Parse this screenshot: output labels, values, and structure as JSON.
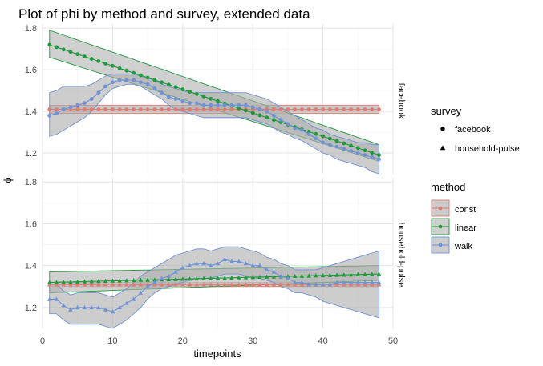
{
  "chart_data": {
    "type": "line",
    "title": "Plot of phi by method and survey, extended data",
    "xlabel": "timepoints",
    "ylabel": "ϕ",
    "xlim": [
      0,
      50
    ],
    "ylim": [
      1.1,
      1.82
    ],
    "x_ticks": [
      0,
      10,
      20,
      30,
      40,
      50
    ],
    "y_ticks": [
      1.2,
      1.4,
      1.6,
      1.8
    ],
    "grid": true,
    "facets": [
      "facebook",
      "household-pulse"
    ],
    "legend_position": "right",
    "legend": {
      "survey": {
        "title": "survey",
        "items": [
          {
            "label": "facebook",
            "shape": "circle"
          },
          {
            "label": "household-pulse",
            "shape": "triangle"
          }
        ]
      },
      "method": {
        "title": "method",
        "items": [
          {
            "label": "const",
            "color": "#e07b72"
          },
          {
            "label": "linear",
            "color": "#1f9a3a"
          },
          {
            "label": "walk",
            "color": "#6f93d6"
          }
        ]
      }
    },
    "x": [
      1,
      2,
      3,
      4,
      5,
      6,
      7,
      8,
      9,
      10,
      11,
      12,
      13,
      14,
      15,
      16,
      17,
      18,
      19,
      20,
      21,
      22,
      23,
      24,
      25,
      26,
      27,
      28,
      29,
      30,
      31,
      32,
      33,
      34,
      35,
      36,
      37,
      38,
      39,
      40,
      41,
      42,
      43,
      44,
      45,
      46,
      47,
      48
    ],
    "panels": [
      {
        "facet": "facebook",
        "series": [
          {
            "name": "const",
            "color": "#e07b72",
            "value_range": [
              1.41,
              1.41
            ],
            "lower_range": [
              1.39,
              1.39
            ],
            "upper_range": [
              1.43,
              1.43
            ]
          },
          {
            "name": "linear",
            "color": "#1f9a3a",
            "value_range": [
              1.72,
              1.19
            ],
            "lower_range": [
              1.66,
              1.16
            ],
            "upper_range": [
              1.79,
              1.24
            ]
          },
          {
            "name": "walk",
            "color": "#6f93d6",
            "values": [
              1.38,
              1.39,
              1.41,
              1.42,
              1.43,
              1.44,
              1.46,
              1.49,
              1.52,
              1.54,
              1.55,
              1.55,
              1.55,
              1.54,
              1.53,
              1.51,
              1.49,
              1.47,
              1.46,
              1.45,
              1.44,
              1.44,
              1.43,
              1.43,
              1.43,
              1.43,
              1.43,
              1.43,
              1.43,
              1.42,
              1.41,
              1.4,
              1.38,
              1.36,
              1.34,
              1.32,
              1.31,
              1.29,
              1.27,
              1.25,
              1.24,
              1.23,
              1.22,
              1.21,
              1.2,
              1.19,
              1.18,
              1.17
            ],
            "lower": [
              1.28,
              1.29,
              1.31,
              1.33,
              1.35,
              1.37,
              1.4,
              1.44,
              1.48,
              1.51,
              1.52,
              1.53,
              1.53,
              1.52,
              1.5,
              1.48,
              1.46,
              1.43,
              1.41,
              1.4,
              1.39,
              1.38,
              1.37,
              1.37,
              1.37,
              1.37,
              1.37,
              1.37,
              1.37,
              1.36,
              1.35,
              1.34,
              1.32,
              1.3,
              1.29,
              1.27,
              1.26,
              1.24,
              1.22,
              1.2,
              1.19,
              1.17,
              1.16,
              1.15,
              1.14,
              1.13,
              1.11,
              1.1
            ],
            "upper": [
              1.49,
              1.5,
              1.52,
              1.52,
              1.52,
              1.52,
              1.53,
              1.55,
              1.57,
              1.58,
              1.58,
              1.58,
              1.58,
              1.57,
              1.56,
              1.55,
              1.53,
              1.52,
              1.51,
              1.5,
              1.49,
              1.49,
              1.49,
              1.49,
              1.49,
              1.49,
              1.49,
              1.49,
              1.49,
              1.48,
              1.47,
              1.46,
              1.44,
              1.42,
              1.4,
              1.38,
              1.36,
              1.34,
              1.32,
              1.31,
              1.29,
              1.28,
              1.27,
              1.26,
              1.25,
              1.25,
              1.24,
              1.24
            ]
          }
        ]
      },
      {
        "facet": "household-pulse",
        "series": [
          {
            "name": "const",
            "color": "#e07b72",
            "value_range": [
              1.31,
              1.31
            ],
            "lower_range": [
              1.3,
              1.3
            ],
            "upper_range": [
              1.32,
              1.32
            ]
          },
          {
            "name": "linear",
            "color": "#1f9a3a",
            "value_range": [
              1.32,
              1.36
            ],
            "lower_range": [
              1.27,
              1.33
            ],
            "upper_range": [
              1.37,
              1.4
            ]
          },
          {
            "name": "walk",
            "color": "#6f93d6",
            "values": [
              1.24,
              1.24,
              1.21,
              1.19,
              1.2,
              1.2,
              1.2,
              1.2,
              1.19,
              1.18,
              1.2,
              1.22,
              1.24,
              1.27,
              1.3,
              1.32,
              1.34,
              1.35,
              1.37,
              1.39,
              1.4,
              1.41,
              1.41,
              1.4,
              1.41,
              1.43,
              1.42,
              1.42,
              1.41,
              1.4,
              1.4,
              1.38,
              1.37,
              1.35,
              1.34,
              1.32,
              1.32,
              1.31,
              1.31,
              1.31,
              1.31,
              1.32,
              1.32,
              1.32,
              1.32,
              1.32,
              1.32,
              1.32
            ],
            "lower": [
              1.17,
              1.17,
              1.14,
              1.12,
              1.12,
              1.12,
              1.12,
              1.12,
              1.11,
              1.1,
              1.12,
              1.14,
              1.17,
              1.2,
              1.24,
              1.27,
              1.29,
              1.3,
              1.31,
              1.32,
              1.33,
              1.34,
              1.34,
              1.34,
              1.35,
              1.36,
              1.36,
              1.36,
              1.35,
              1.34,
              1.34,
              1.33,
              1.32,
              1.3,
              1.29,
              1.27,
              1.27,
              1.26,
              1.25,
              1.23,
              1.22,
              1.21,
              1.2,
              1.19,
              1.18,
              1.17,
              1.16,
              1.15
            ],
            "upper": [
              1.31,
              1.31,
              1.28,
              1.26,
              1.27,
              1.27,
              1.27,
              1.27,
              1.26,
              1.25,
              1.27,
              1.29,
              1.32,
              1.35,
              1.37,
              1.39,
              1.41,
              1.43,
              1.45,
              1.46,
              1.47,
              1.48,
              1.48,
              1.47,
              1.48,
              1.49,
              1.49,
              1.49,
              1.48,
              1.47,
              1.46,
              1.44,
              1.43,
              1.41,
              1.4,
              1.38,
              1.38,
              1.38,
              1.38,
              1.39,
              1.4,
              1.41,
              1.42,
              1.43,
              1.44,
              1.45,
              1.46,
              1.47
            ]
          }
        ]
      }
    ]
  }
}
